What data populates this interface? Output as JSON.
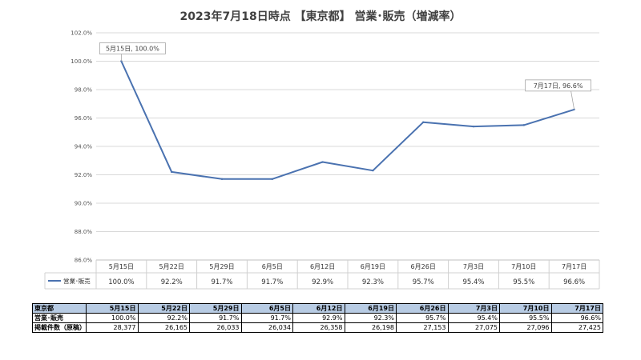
{
  "chart_data": {
    "type": "line",
    "title": "2023年7月18日時点 【東京都】 営業･販売（増減率）",
    "categories": [
      "5月15日",
      "5月22日",
      "5月29日",
      "6月5日",
      "6月12日",
      "6月19日",
      "6月26日",
      "7月3日",
      "7月10日",
      "7月17日"
    ],
    "series": [
      {
        "name": "営業･販売",
        "values": [
          100.0,
          92.2,
          91.7,
          91.7,
          92.9,
          92.3,
          95.7,
          95.4,
          95.5,
          96.6
        ]
      }
    ],
    "value_labels": [
      "100.0%",
      "92.2%",
      "91.7%",
      "91.7%",
      "92.9%",
      "92.3%",
      "95.7%",
      "95.4%",
      "95.5%",
      "96.6%"
    ],
    "ylim": [
      86,
      102
    ],
    "yticks": [
      86,
      88,
      90,
      92,
      94,
      96,
      98,
      100,
      102
    ],
    "ytick_labels": [
      "86.0%",
      "88.0%",
      "90.0%",
      "92.0%",
      "94.0%",
      "96.0%",
      "98.0%",
      "100.0%",
      "102.0%"
    ],
    "grid": true,
    "legend_position": "table-left",
    "line_color": "#4a72b0",
    "annotations": [
      {
        "index": 0,
        "text": "5月15日, 100.0%"
      },
      {
        "index": 9,
        "text": "7月17日, 96.6%"
      }
    ]
  },
  "table": {
    "region_label": "東京都",
    "headers": [
      "5月15日",
      "5月22日",
      "5月29日",
      "6月5日",
      "6月12日",
      "6月19日",
      "6月26日",
      "7月3日",
      "7月10日",
      "7月17日"
    ],
    "rows": [
      {
        "label": "営業･販売",
        "values": [
          "100.0%",
          "92.2%",
          "91.7%",
          "91.7%",
          "92.9%",
          "92.3%",
          "95.7%",
          "95.4%",
          "95.5%",
          "96.6%"
        ]
      },
      {
        "label": "掲載件数（原稿）",
        "values": [
          "28,377",
          "26,165",
          "26,033",
          "26,034",
          "26,358",
          "26,198",
          "27,153",
          "27,075",
          "27,096",
          "27,425"
        ]
      }
    ]
  },
  "colors": {
    "header_fill": "#b8cce4",
    "grid": "#d9d9d9"
  }
}
